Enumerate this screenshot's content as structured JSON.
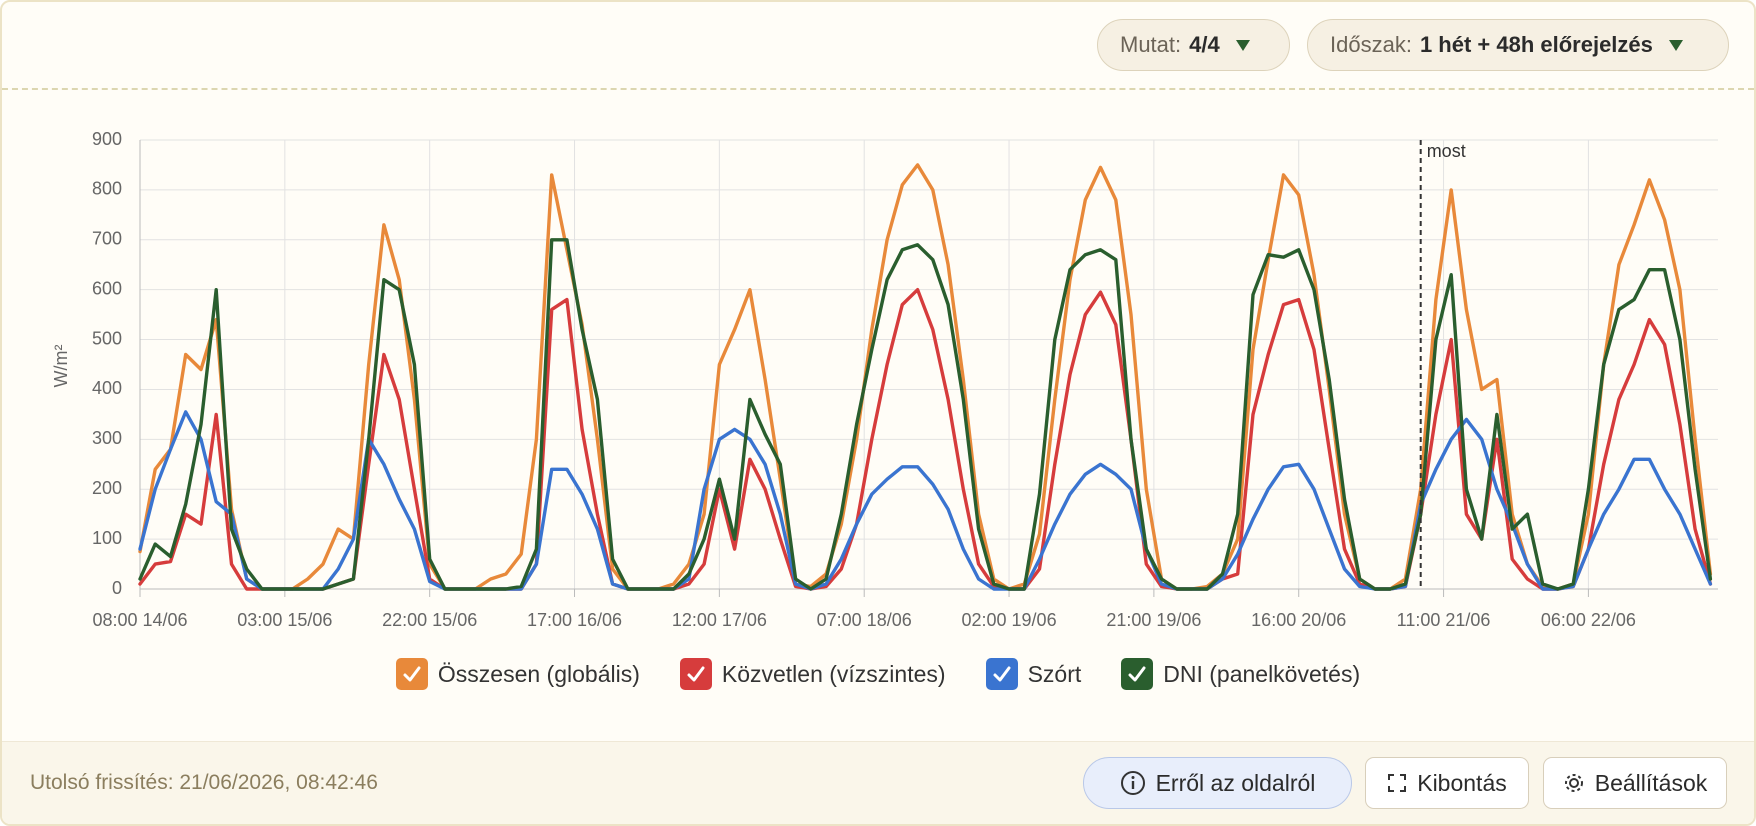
{
  "header": {
    "show_label": "Mutat:",
    "show_value": "4/4",
    "period_label": "Időszak:",
    "period_value": "1 hét + 48h előrejelzés"
  },
  "chart_data": {
    "type": "line",
    "y_label": "W/m²",
    "x": [
      "08:00 14/06",
      "10:00 14/06",
      "12:00 14/06",
      "14:00 14/06",
      "16:00 14/06",
      "18:00 14/06",
      "20:00 14/06",
      "22:00 14/06",
      "00:00 15/06",
      "02:00 15/06",
      "04:00 15/06",
      "06:00 15/06",
      "08:00 15/06",
      "10:00 15/06",
      "12:00 15/06",
      "14:00 15/06",
      "16:00 15/06",
      "18:00 15/06",
      "20:00 15/06",
      "22:00 15/06",
      "00:00 16/06",
      "02:00 16/06",
      "04:00 16/06",
      "06:00 16/06",
      "08:00 16/06",
      "10:00 16/06",
      "12:00 16/06",
      "14:00 16/06",
      "16:00 16/06",
      "18:00 16/06",
      "20:00 16/06",
      "22:00 16/06",
      "00:00 17/06",
      "02:00 17/06",
      "04:00 17/06",
      "06:00 17/06",
      "08:00 17/06",
      "10:00 17/06",
      "12:00 17/06",
      "14:00 17/06",
      "16:00 17/06",
      "18:00 17/06",
      "20:00 17/06",
      "22:00 17/06",
      "00:00 18/06",
      "02:00 18/06",
      "04:00 18/06",
      "06:00 18/06",
      "08:00 18/06",
      "10:00 18/06",
      "12:00 18/06",
      "14:00 18/06",
      "16:00 18/06",
      "18:00 18/06",
      "20:00 18/06",
      "22:00 18/06",
      "00:00 19/06",
      "02:00 19/06",
      "04:00 19/06",
      "06:00 19/06",
      "08:00 19/06",
      "10:00 19/06",
      "12:00 19/06",
      "14:00 19/06",
      "16:00 19/06",
      "18:00 19/06",
      "20:00 19/06",
      "22:00 19/06",
      "00:00 20/06",
      "02:00 20/06",
      "04:00 20/06",
      "06:00 20/06",
      "08:00 20/06",
      "10:00 20/06",
      "12:00 20/06",
      "14:00 20/06",
      "16:00 20/06",
      "18:00 20/06",
      "20:00 20/06",
      "22:00 20/06",
      "00:00 21/06",
      "02:00 21/06",
      "04:00 21/06",
      "06:00 21/06",
      "08:00 21/06",
      "10:00 21/06",
      "12:00 21/06",
      "14:00 21/06",
      "16:00 21/06",
      "18:00 21/06",
      "20:00 21/06",
      "22:00 21/06",
      "00:00 22/06",
      "02:00 22/06",
      "04:00 22/06",
      "06:00 22/06",
      "08:00 22/06",
      "10:00 22/06",
      "12:00 22/06",
      "14:00 22/06",
      "16:00 22/06",
      "18:00 22/06",
      "20:00 22/06",
      "22:00 22/06"
    ],
    "series": [
      {
        "name": "Összesen (globális)",
        "color": "#e8893a",
        "values": [
          75,
          240,
          280,
          470,
          440,
          540,
          160,
          20,
          0,
          0,
          0,
          20,
          50,
          120,
          100,
          450,
          730,
          620,
          380,
          50,
          0,
          0,
          0,
          20,
          30,
          70,
          300,
          830,
          680,
          530,
          300,
          40,
          0,
          0,
          0,
          10,
          50,
          150,
          450,
          520,
          600,
          420,
          220,
          10,
          5,
          30,
          130,
          300,
          520,
          700,
          810,
          850,
          800,
          650,
          420,
          150,
          20,
          0,
          10,
          110,
          380,
          620,
          780,
          845,
          780,
          550,
          200,
          20,
          0,
          0,
          5,
          30,
          100,
          480,
          660,
          830,
          790,
          630,
          400,
          150,
          20,
          0,
          0,
          20,
          200,
          580,
          800,
          560,
          400,
          420,
          150,
          50,
          5,
          0,
          10,
          150,
          450,
          650,
          730,
          820,
          740,
          600,
          300,
          30
        ]
      },
      {
        "name": "Közvetlen (vízszintes)",
        "color": "#d63c3c",
        "values": [
          10,
          50,
          55,
          150,
          130,
          350,
          50,
          0,
          0,
          0,
          0,
          0,
          0,
          10,
          20,
          250,
          470,
          380,
          200,
          20,
          0,
          0,
          0,
          0,
          0,
          0,
          50,
          560,
          580,
          320,
          150,
          10,
          0,
          0,
          0,
          0,
          10,
          50,
          200,
          80,
          260,
          200,
          100,
          5,
          0,
          5,
          40,
          130,
          300,
          450,
          570,
          600,
          520,
          380,
          200,
          50,
          5,
          0,
          0,
          40,
          250,
          430,
          550,
          595,
          530,
          300,
          50,
          5,
          0,
          0,
          0,
          20,
          30,
          350,
          470,
          570,
          580,
          480,
          280,
          80,
          10,
          0,
          0,
          5,
          150,
          350,
          500,
          150,
          100,
          300,
          60,
          20,
          0,
          0,
          5,
          80,
          250,
          380,
          450,
          540,
          490,
          330,
          120,
          10
        ]
      },
      {
        "name": "Szórt",
        "color": "#3a74d0",
        "values": [
          80,
          200,
          280,
          355,
          300,
          175,
          150,
          20,
          0,
          0,
          0,
          0,
          0,
          40,
          100,
          300,
          250,
          180,
          120,
          15,
          0,
          0,
          0,
          0,
          0,
          0,
          50,
          240,
          240,
          190,
          120,
          10,
          0,
          0,
          0,
          0,
          20,
          200,
          300,
          320,
          300,
          250,
          150,
          10,
          0,
          10,
          60,
          130,
          190,
          220,
          245,
          245,
          210,
          160,
          80,
          20,
          0,
          0,
          0,
          60,
          130,
          190,
          230,
          250,
          230,
          200,
          80,
          10,
          0,
          0,
          0,
          20,
          70,
          140,
          200,
          245,
          250,
          200,
          120,
          40,
          5,
          0,
          0,
          5,
          170,
          240,
          300,
          340,
          300,
          200,
          130,
          50,
          0,
          0,
          5,
          80,
          150,
          200,
          260,
          260,
          200,
          150,
          80,
          10
        ]
      },
      {
        "name": "DNI (panelkövetés)",
        "color": "#2a5e2e",
        "values": [
          20,
          90,
          65,
          170,
          330,
          600,
          120,
          40,
          0,
          0,
          0,
          0,
          0,
          10,
          20,
          300,
          620,
          600,
          450,
          60,
          0,
          0,
          0,
          0,
          0,
          5,
          80,
          700,
          700,
          520,
          380,
          60,
          0,
          0,
          0,
          0,
          30,
          100,
          220,
          100,
          380,
          310,
          250,
          20,
          0,
          20,
          150,
          330,
          480,
          620,
          680,
          690,
          660,
          570,
          380,
          120,
          10,
          0,
          0,
          190,
          500,
          640,
          670,
          680,
          660,
          300,
          80,
          20,
          0,
          0,
          0,
          30,
          150,
          590,
          670,
          665,
          680,
          600,
          420,
          180,
          20,
          0,
          0,
          10,
          150,
          500,
          630,
          200,
          100,
          350,
          120,
          150,
          10,
          0,
          10,
          200,
          450,
          560,
          580,
          640,
          640,
          500,
          240,
          20
        ]
      }
    ],
    "xlim": [
      "08:00 14/06",
      "23:00 22/06"
    ],
    "xticks": [
      "08:00 14/06",
      "03:00 15/06",
      "22:00 15/06",
      "17:00 16/06",
      "12:00 17/06",
      "07:00 18/06",
      "02:00 19/06",
      "21:00 19/06",
      "16:00 20/06",
      "11:00 21/06",
      "06:00 22/06"
    ],
    "ylim": [
      0,
      900
    ],
    "yticks": [
      0,
      100,
      200,
      300,
      400,
      500,
      600,
      700,
      800,
      900
    ],
    "grid": true,
    "annotations": [
      {
        "label": "most",
        "x": "08:00 21/06"
      }
    ]
  },
  "footer": {
    "last_update": "Utolsó frissítés: 21/06/2026, 08:42:46",
    "buttons": [
      "Erről az oldalról",
      "Kibontás",
      "Beállítások"
    ]
  }
}
